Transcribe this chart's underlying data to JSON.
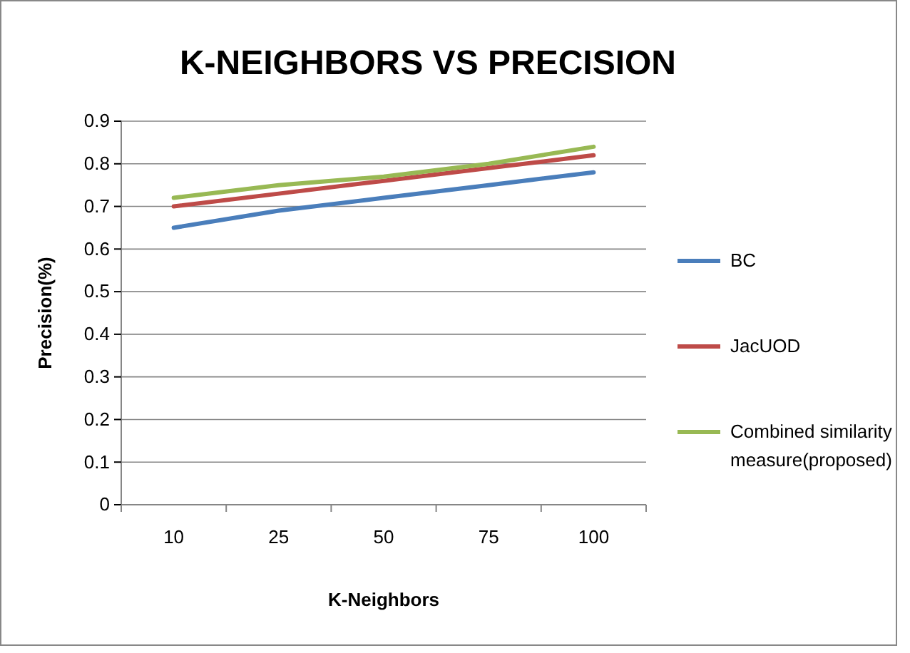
{
  "chart_data": {
    "type": "line",
    "title": "K-NEIGHBORS VS PRECISION",
    "xlabel": "K-Neighbors",
    "ylabel": "Precision(%)",
    "categories": [
      "10",
      "25",
      "50",
      "75",
      "100"
    ],
    "series": [
      {
        "name": "BC",
        "color": "#4a7ebb",
        "values": [
          0.65,
          0.69,
          0.72,
          0.75,
          0.78
        ]
      },
      {
        "name": "JacUOD",
        "color": "#be4b48",
        "values": [
          0.7,
          0.73,
          0.76,
          0.79,
          0.82
        ]
      },
      {
        "name": "Combined similarity measure(proposed)",
        "color": "#98b954",
        "values": [
          0.72,
          0.75,
          0.77,
          0.8,
          0.84
        ]
      }
    ],
    "ylim": [
      0,
      0.9
    ],
    "yticks": [
      0,
      0.1,
      0.2,
      0.3,
      0.4,
      0.5,
      0.6,
      0.7,
      0.8,
      0.9
    ],
    "grid": "y",
    "legend": "right",
    "marker": "none",
    "line_style": "solid"
  }
}
